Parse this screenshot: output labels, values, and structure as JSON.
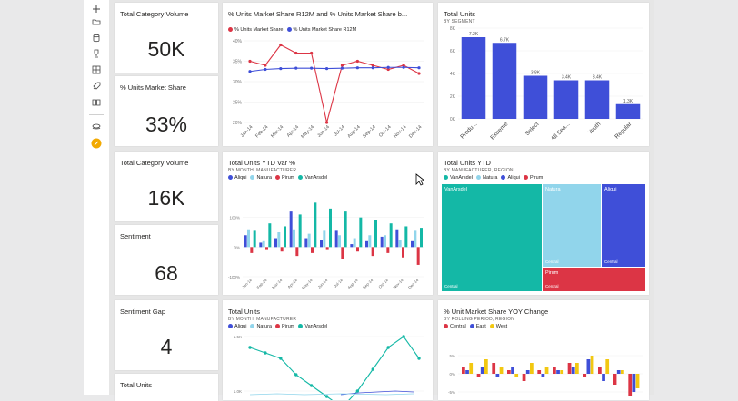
{
  "colors": {
    "blue": "#3f4fd8",
    "lightblue": "#91d5eb",
    "teal": "#14b8a6",
    "red": "#dc3545",
    "yellow": "#f2c811"
  },
  "rail_icons": [
    "plus-icon",
    "folder-icon",
    "database-icon",
    "trophy-icon",
    "apps-icon",
    "rocket-icon",
    "book-icon",
    "layers-icon",
    "pen-icon"
  ],
  "kpis": [
    {
      "title": "Total Category Volume",
      "value": "50K"
    },
    {
      "title": "% Units Market Share",
      "value": "33%"
    },
    {
      "title": "Total Category Volume",
      "value": "16K"
    },
    {
      "title": "Sentiment",
      "value": "68"
    },
    {
      "title": "Sentiment Gap",
      "value": "4"
    },
    {
      "title": "Total Units",
      "value": ""
    }
  ],
  "line1": {
    "title": "% Units Market Share R12M and % Units Market Share b...",
    "legend": [
      {
        "name": "% Units Market Share",
        "color": "#dc3545"
      },
      {
        "name": "% Units Market Share R12M",
        "color": "#3f4fd8"
      }
    ]
  },
  "bar1": {
    "title": "Total Units",
    "subtitle": "BY SEGMENT"
  },
  "ytd": {
    "title": "Total Units YTD Var %",
    "subtitle": "BY MONTH, MANUFACTURER",
    "legend": [
      {
        "name": "Aliqui",
        "color": "#3f4fd8"
      },
      {
        "name": "Natura",
        "color": "#91d5eb"
      },
      {
        "name": "Pirum",
        "color": "#dc3545"
      },
      {
        "name": "VanArsdel",
        "color": "#14b8a6"
      }
    ]
  },
  "treemap": {
    "title": "Total Units YTD",
    "subtitle": "BY MANUFACTURER, REGION",
    "legend": [
      {
        "name": "VanArsdel",
        "color": "#14b8a6"
      },
      {
        "name": "Natura",
        "color": "#91d5eb"
      },
      {
        "name": "Aliqui",
        "color": "#3f4fd8"
      },
      {
        "name": "Pirum",
        "color": "#dc3545"
      }
    ],
    "labels": {
      "vanarsdel": "VanArsdel",
      "natura": "Natura",
      "aliqui": "Aliqui",
      "pirum": "Pirum",
      "central": "Central"
    }
  },
  "units_line": {
    "title": "Total Units",
    "subtitle": "BY MONTH, MANUFACTURER",
    "legend": [
      {
        "name": "Aliqui",
        "color": "#3f4fd8"
      },
      {
        "name": "Natura",
        "color": "#91d5eb"
      },
      {
        "name": "Pirum",
        "color": "#dc3545"
      },
      {
        "name": "VanArsdel",
        "color": "#14b8a6"
      }
    ]
  },
  "yoy": {
    "title": "% Unit Market Share YOY Change",
    "subtitle": "BY ROLLING PERIOD, REGION",
    "legend": [
      {
        "name": "Central",
        "color": "#dc3545"
      },
      {
        "name": "East",
        "color": "#3f4fd8"
      },
      {
        "name": "West",
        "color": "#f2c811"
      }
    ]
  },
  "chart_data": [
    {
      "type": "line",
      "x": [
        "Jan-14",
        "Feb-14",
        "Mar-14",
        "Apr-14",
        "May-14",
        "Jun-14",
        "Jul-14",
        "Aug-14",
        "Sep-14",
        "Oct-14",
        "Nov-14",
        "Dec-14"
      ],
      "series": [
        {
          "name": "% Units Market Share",
          "values": [
            35,
            34,
            39,
            37,
            37,
            20,
            34,
            35,
            34,
            33,
            34,
            32
          ]
        },
        {
          "name": "% Units Market Share R12M",
          "values": [
            32.5,
            33,
            33.2,
            33.3,
            33.3,
            33.2,
            33.3,
            33.4,
            33.4,
            33.5,
            33.5,
            33.4
          ]
        }
      ],
      "ylim": [
        20,
        40
      ],
      "yticks": [
        "20%",
        "25%",
        "30%",
        "35%",
        "40%"
      ]
    },
    {
      "type": "bar",
      "categories": [
        "Produ...",
        "Extreme",
        "Select",
        "All Sea...",
        "Youth",
        "Regular"
      ],
      "values": [
        7.2,
        6.7,
        3.8,
        3.4,
        3.4,
        1.3
      ],
      "data_labels": [
        "7.2K",
        "6.7K",
        "3.8K",
        "3.4K",
        "3.4K",
        "1.3K"
      ],
      "yticks": [
        "0K",
        "2K",
        "4K",
        "6K",
        "8K"
      ],
      "ylim": [
        0,
        8
      ]
    },
    {
      "type": "bar",
      "categories": [
        "Jan-14",
        "Feb-14",
        "Mar-14",
        "Apr-14",
        "May-14",
        "Jun-14",
        "Jul-14",
        "Aug-14",
        "Sep-14",
        "Oct-14",
        "Nov-14",
        "Dec-14"
      ],
      "series": [
        {
          "name": "Aliqui",
          "values": [
            40,
            15,
            30,
            120,
            30,
            25,
            55,
            10,
            20,
            35,
            60,
            20
          ]
        },
        {
          "name": "Natura",
          "values": [
            60,
            20,
            50,
            60,
            45,
            55,
            40,
            30,
            40,
            40,
            25,
            55
          ]
        },
        {
          "name": "Pirum",
          "values": [
            -20,
            -10,
            -15,
            -30,
            -20,
            -10,
            -40,
            -15,
            -30,
            -20,
            -35,
            -60
          ]
        },
        {
          "name": "VanArsdel",
          "values": [
            55,
            80,
            70,
            110,
            150,
            130,
            120,
            100,
            90,
            80,
            70,
            65
          ]
        }
      ],
      "ylim": [
        -100,
        200
      ],
      "yticks": [
        "100%",
        "0%",
        "-100%"
      ]
    },
    {
      "type": "line",
      "x": [
        "Jan-14",
        "Feb-14",
        "Mar-14",
        "Apr-14",
        "May-14",
        "Jun-14",
        "Jul-14",
        "Aug-14",
        "Sep-14",
        "Oct-14",
        "Nov-14",
        "Dec-14"
      ],
      "series": [
        {
          "name": "VanArsdel",
          "values": [
            1400,
            1350,
            1300,
            1150,
            1050,
            950,
            850,
            1000,
            1200,
            1400,
            1500,
            1300
          ]
        }
      ],
      "yticks": [
        "1.5K",
        "1.0K"
      ]
    },
    {
      "type": "bar",
      "yticks": [
        "5%",
        "0%",
        "-5%"
      ],
      "series": [
        {
          "name": "Central",
          "values": [
            2,
            -1,
            3,
            1,
            -2,
            1,
            2,
            3,
            -1,
            2,
            -3,
            -6
          ]
        },
        {
          "name": "East",
          "values": [
            1,
            2,
            -1,
            2,
            1,
            -1,
            1,
            2,
            4,
            -2,
            1,
            -5
          ]
        },
        {
          "name": "West",
          "values": [
            3,
            4,
            2,
            -1,
            3,
            2,
            1,
            3,
            5,
            4,
            1,
            -4
          ]
        }
      ]
    }
  ]
}
